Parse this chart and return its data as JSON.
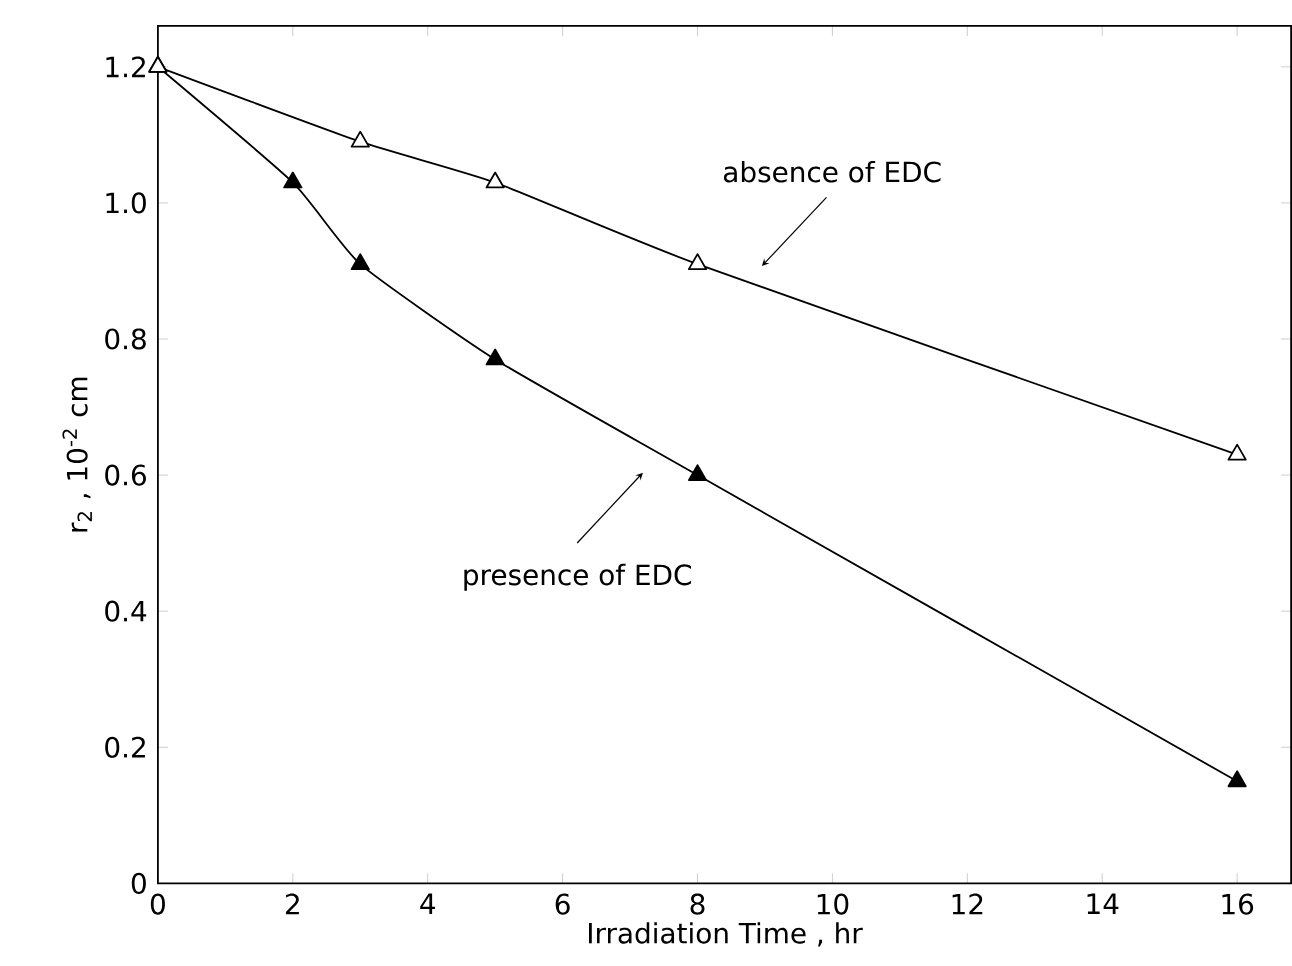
{
  "chart_data": {
    "type": "line",
    "xlabel": "Irradiation Time ,  hr",
    "ylabel": "r$_{2}$ ,  10$^{-2}$ cm",
    "series": [
      {
        "color": "#000000",
        "x": [
          0,
          3,
          5,
          8,
          16
        ],
        "values": [
          1.2,
          1.09,
          1.03,
          0.91,
          0.63
        ]
      },
      {
        "color": "#000000",
        "x": [
          0,
          2,
          3,
          5,
          8,
          16
        ],
        "values": [
          1.2,
          1.03,
          0.91,
          0.77,
          0.6,
          0.15
        ]
      }
    ],
    "marker": "triangle",
    "line_style": "solid",
    "grid": false,
    "xlim": [
      0,
      16.8
    ],
    "ylim": [
      0,
      1.26
    ],
    "xticks": [
      0,
      2,
      4,
      6,
      8,
      10,
      12,
      14,
      16
    ],
    "yticks": [
      0,
      0.2,
      0.4,
      0.6,
      0.8,
      {
        "value": 1,
        "label": "1.0"
      },
      1.2
    ],
    "annotations": [
      "absence of EDC",
      "presence of EDC"
    ]
  }
}
